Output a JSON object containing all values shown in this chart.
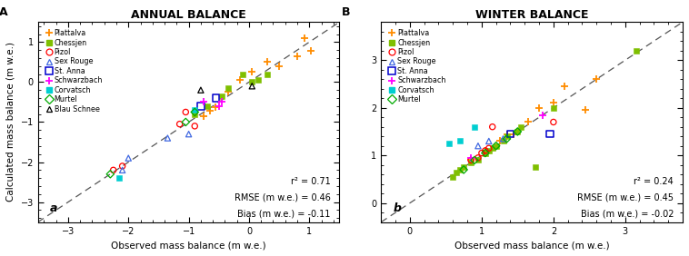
{
  "panel_A": {
    "title": "ANNUAL BALANCE",
    "xlabel": "Observed mass balance (m w.e.)",
    "ylabel": "Calculated mass balance (m w.e.)",
    "xlim": [
      -3.5,
      1.5
    ],
    "ylim": [
      -3.5,
      1.5
    ],
    "xticks": [
      -3,
      -2,
      -1,
      0,
      1
    ],
    "yticks": [
      -3,
      -2,
      -1,
      0,
      1
    ],
    "label": "a",
    "r2": "r² = 0.71",
    "rmse": "RMSE (m w.e.) = 0.46",
    "bias": "Bias (m w.e.) = -0.11"
  },
  "panel_B": {
    "title": "WINTER BALANCE",
    "xlabel": "Observed mass balance (m w.e.)",
    "ylabel": "",
    "xlim": [
      -0.4,
      3.8
    ],
    "ylim": [
      -0.4,
      3.8
    ],
    "xticks": [
      0,
      1,
      2,
      3
    ],
    "yticks": [
      0,
      1,
      2,
      3
    ],
    "label": "b",
    "r2": "r² = 0.24",
    "rmse": "RMSE (m w.e.) = 0.45",
    "bias": "Bias (m w.e.) = -0.02"
  },
  "glaciers": [
    {
      "name": "Plattalva",
      "color": "#FF8C00",
      "marker": "+",
      "ms": 32,
      "lw": 1.3,
      "annual_obs": [
        0.3,
        0.05,
        -0.15,
        -0.35,
        -0.55,
        -0.65,
        -0.75,
        0.5,
        0.8,
        0.92,
        1.02
      ],
      "annual_calc": [
        0.5,
        0.25,
        0.05,
        -0.25,
        -0.62,
        -0.72,
        -0.85,
        0.4,
        0.65,
        1.1,
        0.78
      ],
      "winter_obs": [
        0.85,
        1.05,
        1.25,
        1.35,
        1.45,
        1.5,
        1.65,
        1.8,
        2.0,
        2.15,
        2.45,
        2.6
      ],
      "winter_calc": [
        0.9,
        1.1,
        1.3,
        1.45,
        1.45,
        1.5,
        1.7,
        2.0,
        2.1,
        2.45,
        1.95,
        2.6
      ]
    },
    {
      "name": "Chessjen",
      "color": "#7FBF00",
      "marker": "s",
      "filled": true,
      "ms": 18,
      "lw": 0.5,
      "annual_obs": [
        -0.1,
        -0.35,
        -0.45,
        -0.7,
        -0.9,
        0.05,
        0.15,
        0.3
      ],
      "annual_calc": [
        0.2,
        -0.15,
        -0.35,
        -0.6,
        -0.8,
        0.0,
        0.05,
        0.2
      ],
      "winter_obs": [
        0.6,
        0.65,
        0.7,
        0.75,
        0.85,
        0.95,
        1.05,
        1.1,
        1.15,
        1.2,
        1.3,
        1.35,
        1.5,
        1.55,
        2.0,
        1.75,
        3.15
      ],
      "winter_calc": [
        0.55,
        0.65,
        0.7,
        0.75,
        0.85,
        0.9,
        1.05,
        1.1,
        1.15,
        1.2,
        1.3,
        1.4,
        1.5,
        1.6,
        2.0,
        0.75,
        3.2
      ]
    },
    {
      "name": "Pizol",
      "color": "#FF0000",
      "marker": "o",
      "filled": false,
      "ms": 20,
      "lw": 0.9,
      "annual_obs": [
        -1.05,
        -1.15,
        -2.1,
        -2.25,
        -0.9
      ],
      "annual_calc": [
        -0.75,
        -1.05,
        -2.1,
        -2.2,
        -1.1
      ],
      "winter_obs": [
        0.85,
        0.95,
        1.0,
        1.05,
        1.1,
        1.15,
        2.0
      ],
      "winter_calc": [
        0.9,
        0.95,
        1.05,
        1.1,
        1.15,
        1.6,
        1.7
      ]
    },
    {
      "name": "Sex Rouge",
      "color": "#4169E1",
      "marker": "^",
      "filled": false,
      "ms": 20,
      "lw": 0.9,
      "annual_obs": [
        -1.0,
        -2.1,
        -2.0,
        -1.35
      ],
      "annual_calc": [
        -1.3,
        -2.2,
        -1.9,
        -1.4
      ],
      "winter_obs": [
        0.95,
        1.1,
        1.3
      ],
      "winter_calc": [
        1.2,
        1.3,
        1.35
      ]
    },
    {
      "name": "St. Anna",
      "color": "#0000CD",
      "marker": "s",
      "filled": false,
      "ms": 28,
      "lw": 1.1,
      "annual_obs": [
        -0.8,
        -0.55
      ],
      "annual_calc": [
        -0.6,
        -0.4
      ],
      "winter_obs": [
        1.4,
        1.95
      ],
      "winter_calc": [
        1.45,
        1.45
      ]
    },
    {
      "name": "Schwarzbach",
      "color": "#FF00FF",
      "marker": "+",
      "ms": 32,
      "lw": 1.3,
      "annual_obs": [
        -0.75,
        -0.5,
        -0.45
      ],
      "annual_calc": [
        -0.5,
        -0.6,
        -0.5
      ],
      "winter_obs": [
        0.85,
        1.85
      ],
      "winter_calc": [
        0.95,
        1.85
      ]
    },
    {
      "name": "Corvatsch",
      "color": "#00CED1",
      "marker": "s",
      "filled": true,
      "ms": 18,
      "lw": 0.5,
      "annual_obs": [
        -0.9,
        -2.15
      ],
      "annual_calc": [
        -0.7,
        -2.4
      ],
      "winter_obs": [
        0.55,
        0.7,
        0.9
      ],
      "winter_calc": [
        1.25,
        1.3,
        1.6
      ]
    },
    {
      "name": "Murtel",
      "color": "#00AA00",
      "marker": "D",
      "filled": false,
      "ms": 18,
      "lw": 0.9,
      "annual_obs": [
        -0.9,
        -2.3,
        -1.05
      ],
      "annual_calc": [
        -0.75,
        -2.3,
        -1.0
      ],
      "winter_obs": [
        0.75,
        0.9,
        1.05,
        1.2,
        1.35,
        1.5
      ],
      "winter_calc": [
        0.7,
        0.9,
        1.05,
        1.2,
        1.35,
        1.5
      ]
    },
    {
      "name": "Blau Schnee",
      "color": "#000000",
      "marker": "^",
      "filled": false,
      "ms": 20,
      "lw": 0.9,
      "annual_obs": [
        -0.8,
        0.05
      ],
      "annual_calc": [
        -0.2,
        -0.1
      ],
      "winter_obs": [],
      "winter_calc": []
    }
  ]
}
